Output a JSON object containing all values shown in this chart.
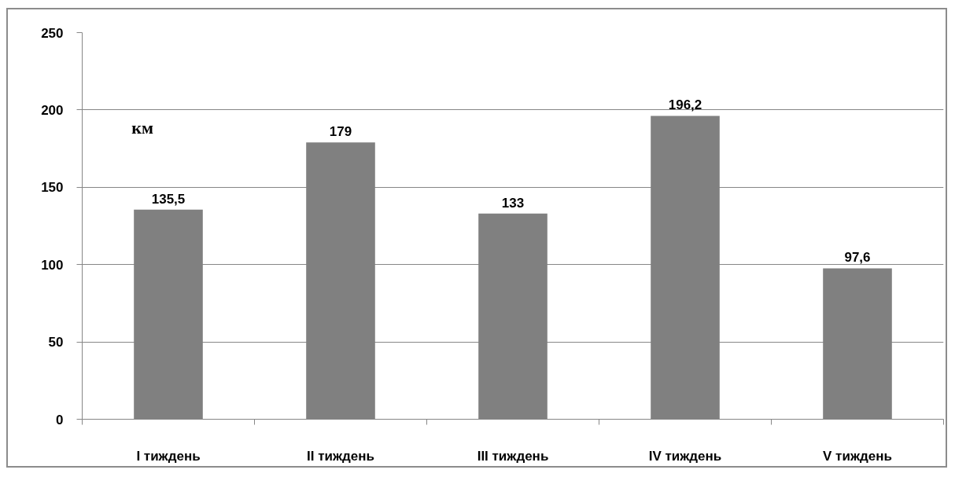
{
  "chart_data": {
    "type": "bar",
    "ylabel": "км",
    "categories": [
      "I тиждень",
      "II тиждень",
      "III тиждень",
      "IV тиждень",
      "V тиждень"
    ],
    "values": [
      135.5,
      179,
      133,
      196.2,
      97.6
    ],
    "value_labels": [
      "135,5",
      "179",
      "133",
      "196,2",
      "97,6"
    ],
    "color": "#808080",
    "ylim": [
      0,
      250
    ],
    "yticks": [
      0,
      50,
      100,
      150,
      200,
      250
    ],
    "grid": "y"
  }
}
